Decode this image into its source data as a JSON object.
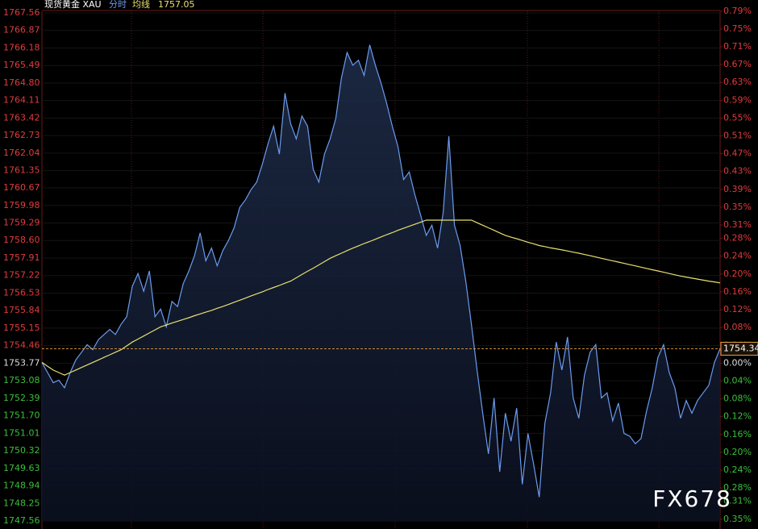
{
  "chart_data": {
    "type": "line",
    "title": "现货黄金 XAU",
    "header_value": 1757.05,
    "header_value_color": "#e8e070",
    "watermark": "FX678",
    "ylim": [
      1747.56,
      1767.56
    ],
    "yticks": [
      1767.56,
      1766.87,
      1766.18,
      1765.49,
      {
        "value": 1764.8,
        "label": "1764.80"
      },
      1764.11,
      1763.42,
      1762.73,
      1762.04,
      1761.35,
      1760.67,
      1759.98,
      1759.29,
      {
        "value": 1758.6,
        "label": "1758.60"
      },
      1757.91,
      1757.22,
      1756.53,
      1755.84,
      1755.15,
      1754.46,
      1753.77,
      1753.08,
      1752.39,
      {
        "value": 1751.7,
        "label": "1751.70"
      },
      1751.01,
      1750.32,
      1749.63,
      1748.94,
      1748.25,
      1747.56
    ],
    "y2lim": [
      -0.354,
      0.786
    ],
    "y2ticks": [
      {
        "value": 0.79,
        "label": "0.79%"
      },
      {
        "value": 0.75,
        "label": "0.75%"
      },
      {
        "value": 0.71,
        "label": "0.71%"
      },
      {
        "value": 0.67,
        "label": "0.67%"
      },
      {
        "value": 0.63,
        "label": "0.63%"
      },
      {
        "value": 0.59,
        "label": "0.59%"
      },
      {
        "value": 0.55,
        "label": "0.55%"
      },
      {
        "value": 0.51,
        "label": "0.51%"
      },
      {
        "value": 0.47,
        "label": "0.47%"
      },
      {
        "value": 0.43,
        "label": "0.43%"
      },
      {
        "value": 0.39,
        "label": "0.39%"
      },
      {
        "value": 0.35,
        "label": "0.35%"
      },
      {
        "value": 0.31,
        "label": "0.31%"
      },
      {
        "value": 0.28,
        "label": "0.28%"
      },
      {
        "value": 0.24,
        "label": "0.24%"
      },
      {
        "value": 0.2,
        "label": "0.20%"
      },
      {
        "value": 0.16,
        "label": "0.16%"
      },
      {
        "value": 0.12,
        "label": "0.12%"
      },
      {
        "value": 0.08,
        "label": "0.08%"
      },
      {
        "value": 0.04,
        "label": "0.04%"
      },
      {
        "value": 0,
        "label": "0.00%"
      },
      {
        "value": -0.04,
        "label": "0.04%"
      },
      {
        "value": -0.08,
        "label": "0.08%"
      },
      {
        "value": -0.12,
        "label": "0.12%"
      },
      {
        "value": -0.16,
        "label": "0.16%"
      },
      {
        "value": -0.2,
        "label": "0.20%"
      },
      {
        "value": -0.24,
        "label": "0.24%"
      },
      {
        "value": -0.28,
        "label": "0.28%"
      },
      {
        "value": -0.31,
        "label": "0.31%"
      },
      {
        "value": -0.35,
        "label": "0.35%"
      }
    ],
    "up_color": "#e03c3c",
    "down_color": "#3cbf3c",
    "current_color": "#e8a040",
    "series": [
      {
        "name": "分时",
        "color": "#6b9bf0",
        "values": [
          1753.8,
          1753.4,
          1753.0,
          1753.1,
          1752.8,
          1753.4,
          1753.9,
          1754.2,
          1754.5,
          1754.3,
          1754.7,
          1754.9,
          1755.1,
          1754.9,
          1755.3,
          1755.6,
          1756.8,
          1757.3,
          1756.6,
          1757.4,
          1755.6,
          1755.9,
          1755.2,
          1756.2,
          1756.0,
          1756.9,
          1757.4,
          1758.0,
          1758.9,
          1757.8,
          1758.3,
          1757.6,
          1758.2,
          1758.6,
          1759.1,
          1759.9,
          1760.2,
          1760.6,
          1760.9,
          1761.6,
          1762.4,
          1763.1,
          1762.0,
          1764.4,
          1763.2,
          1762.6,
          1763.5,
          1763.1,
          1761.4,
          1760.9,
          1762.0,
          1762.6,
          1763.4,
          1765.0,
          1766.0,
          1765.5,
          1765.7,
          1765.1,
          1766.3,
          1765.5,
          1764.8,
          1764.0,
          1763.1,
          1762.3,
          1761.0,
          1761.3,
          1760.4,
          1759.6,
          1758.8,
          1759.2,
          1758.3,
          1759.7,
          1762.7,
          1759.2,
          1758.4,
          1757.0,
          1755.3,
          1753.5,
          1751.8,
          1750.2,
          1752.4,
          1749.5,
          1751.8,
          1750.7,
          1752.0,
          1749.0,
          1751.0,
          1749.8,
          1748.5,
          1751.4,
          1752.6,
          1754.6,
          1753.5,
          1754.8,
          1752.4,
          1751.6,
          1753.3,
          1754.2,
          1754.5,
          1752.4,
          1752.6,
          1751.5,
          1752.2,
          1751.0,
          1750.9,
          1750.6,
          1750.8,
          1751.9,
          1752.8,
          1754.0,
          1754.5,
          1753.4,
          1752.8,
          1751.6,
          1752.3,
          1751.8,
          1752.3,
          1752.6,
          1752.9,
          1753.8,
          1754.34
        ]
      },
      {
        "name": "均线",
        "color": "#e8e070",
        "values": [
          1753.8,
          1753.65,
          1753.5,
          1753.4,
          1753.3,
          1753.4,
          1753.5,
          1753.6,
          1753.7,
          1753.8,
          1753.9,
          1754.0,
          1754.1,
          1754.2,
          1754.3,
          1754.45,
          1754.6,
          1754.72,
          1754.84,
          1754.96,
          1755.08,
          1755.2,
          1755.27,
          1755.35,
          1755.42,
          1755.49,
          1755.56,
          1755.64,
          1755.71,
          1755.78,
          1755.85,
          1755.93,
          1756.0,
          1756.08,
          1756.17,
          1756.25,
          1756.33,
          1756.42,
          1756.5,
          1756.58,
          1756.67,
          1756.75,
          1756.83,
          1756.92,
          1757.0,
          1757.13,
          1757.26,
          1757.39,
          1757.51,
          1757.64,
          1757.77,
          1757.9,
          1758.0,
          1758.1,
          1758.2,
          1758.3,
          1758.39,
          1758.48,
          1758.56,
          1758.65,
          1758.74,
          1758.83,
          1758.91,
          1759.0,
          1759.08,
          1759.16,
          1759.24,
          1759.32,
          1759.4,
          1759.4,
          1759.4,
          1759.4,
          1759.4,
          1759.4,
          1759.4,
          1759.4,
          1759.4,
          1759.3,
          1759.2,
          1759.1,
          1759.0,
          1758.9,
          1758.8,
          1758.73,
          1758.67,
          1758.6,
          1758.53,
          1758.47,
          1758.4,
          1758.36,
          1758.31,
          1758.27,
          1758.23,
          1758.19,
          1758.14,
          1758.1,
          1758.05,
          1758.0,
          1757.95,
          1757.9,
          1757.85,
          1757.8,
          1757.75,
          1757.7,
          1757.65,
          1757.6,
          1757.55,
          1757.5,
          1757.45,
          1757.4,
          1757.35,
          1757.3,
          1757.25,
          1757.2,
          1757.16,
          1757.12,
          1757.08,
          1757.04,
          1757.0,
          1756.97,
          1756.93
        ]
      }
    ]
  }
}
